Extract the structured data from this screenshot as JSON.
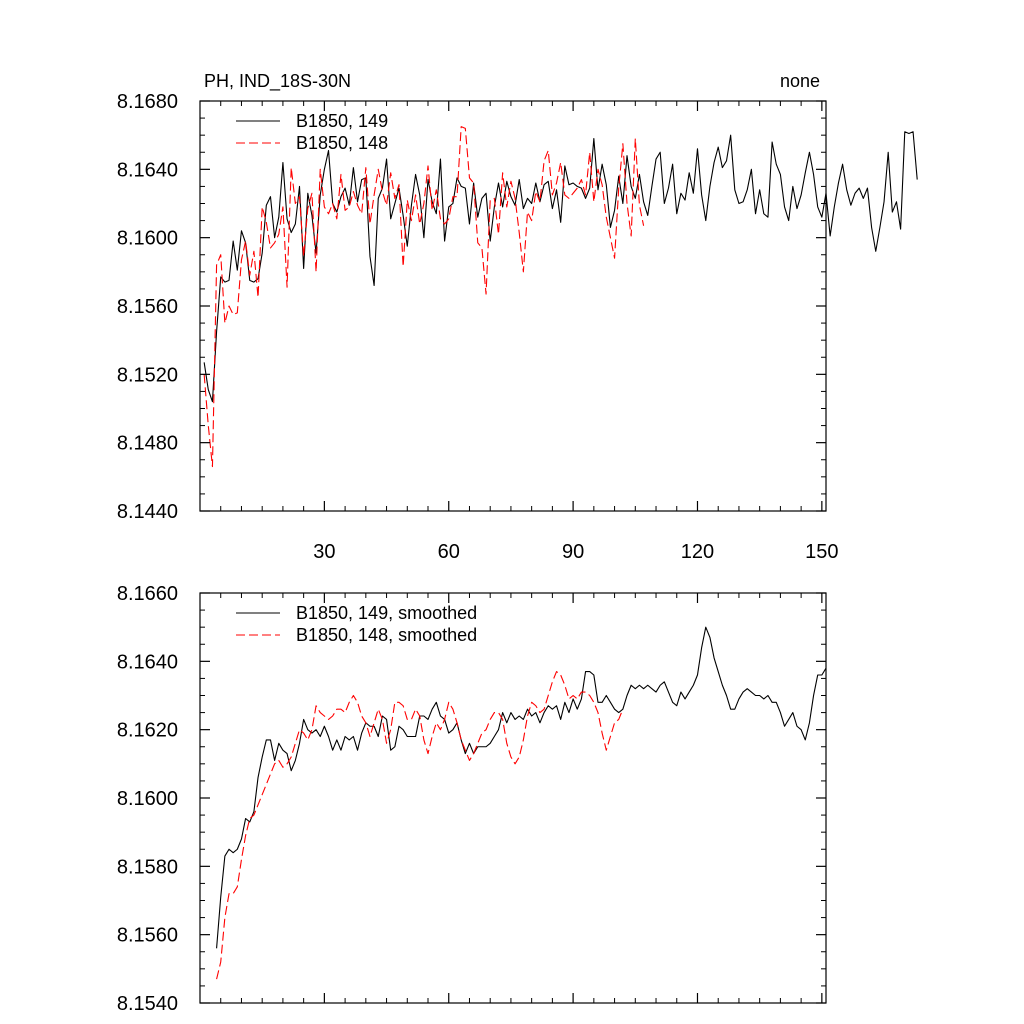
{
  "chart_data": [
    {
      "type": "line",
      "title": "PH, IND_18S-30N",
      "subtitle_right": "none",
      "xlabel": "",
      "ylabel": "",
      "xlim": [
        0,
        151
      ],
      "ylim": [
        8.144,
        8.168
      ],
      "x_ticks": [
        30,
        60,
        90,
        120,
        150
      ],
      "y_ticks": [
        "8.1440",
        "8.1480",
        "8.1520",
        "8.1560",
        "8.1600",
        "8.1640",
        "8.1680"
      ],
      "legend_position": "top-left",
      "series": [
        {
          "name": "B1850, 149",
          "color": "#000000",
          "dash": "solid",
          "x_start": 1,
          "values": [
            8.1527,
            8.1511,
            8.1504,
            8.1545,
            8.1577,
            8.1574,
            8.1575,
            8.1598,
            8.1581,
            8.1604,
            8.1597,
            8.1575,
            8.1574,
            8.1576,
            8.1591,
            8.1619,
            8.1624,
            8.16,
            8.1612,
            8.1644,
            8.1611,
            8.1603,
            8.1608,
            8.163,
            8.1582,
            8.1626,
            8.1613,
            8.1591,
            8.1625,
            8.164,
            8.1651,
            8.162,
            8.1615,
            8.1624,
            8.1629,
            8.1619,
            8.1641,
            8.1621,
            8.1634,
            8.1635,
            8.1589,
            8.1572,
            8.1623,
            8.1629,
            8.1646,
            8.1611,
            8.162,
            8.1629,
            8.1613,
            8.1595,
            8.1619,
            8.1637,
            8.1625,
            8.16,
            8.1634,
            8.1621,
            8.1614,
            8.1646,
            8.1598,
            8.1618,
            8.162,
            8.1635,
            8.163,
            8.1629,
            8.1608,
            8.1632,
            8.1612,
            8.1623,
            8.1626,
            8.1598,
            8.1618,
            8.1632,
            8.1618,
            8.1633,
            8.1624,
            8.1619,
            8.1634,
            8.1617,
            8.1623,
            8.162,
            8.1632,
            8.1621,
            8.1631,
            8.1633,
            8.1617,
            8.1628,
            8.1609,
            8.1642,
            8.1631,
            8.1632,
            8.163,
            8.1629,
            8.1623,
            8.1629,
            8.1658,
            8.1628,
            8.1643,
            8.1631,
            8.1606,
            8.1616,
            8.1636,
            8.162,
            8.1648,
            8.163,
            8.1623,
            8.1637,
            8.1621,
            8.1613,
            8.163,
            8.1646,
            8.165,
            8.162,
            8.1629,
            8.1643,
            8.1614,
            8.1626,
            8.1622,
            8.1638,
            8.1626,
            8.1652,
            8.1625,
            8.161,
            8.163,
            8.1644,
            8.1653,
            8.1641,
            8.1645,
            8.166,
            8.1628,
            8.162,
            8.1621,
            8.1628,
            8.164,
            8.1614,
            8.1628,
            8.1614,
            8.1612,
            8.1656,
            8.1643,
            8.1637,
            8.1618,
            8.161,
            8.163,
            8.1617,
            8.1625,
            8.1638,
            8.165,
            8.1637,
            8.1618,
            8.1612,
            8.1626,
            8.1601,
            8.1618,
            8.1632,
            8.1643,
            8.1628,
            8.1619,
            8.1626,
            8.1629,
            8.1623,
            8.1629,
            8.1606,
            8.1592,
            8.1606,
            8.1621,
            8.165,
            8.1615,
            8.1621,
            8.1605,
            8.1662,
            8.1661,
            8.1662,
            8.1634
          ]
        },
        {
          "name": "B1850, 148",
          "color": "#ff0000",
          "dash": "dashed",
          "x_start": 1,
          "values": [
            8.152,
            8.149,
            8.1466,
            8.1584,
            8.159,
            8.155,
            8.156,
            8.1555,
            8.1556,
            8.1587,
            8.1598,
            8.1578,
            8.1592,
            8.1565,
            8.1618,
            8.1609,
            8.1594,
            8.1597,
            8.1602,
            8.1618,
            8.1571,
            8.1641,
            8.162,
            8.1624,
            8.1589,
            8.1617,
            8.1626,
            8.158,
            8.164,
            8.1618,
            8.1614,
            8.162,
            8.1611,
            8.1637,
            8.1616,
            8.1618,
            8.1627,
            8.1619,
            8.1614,
            8.1641,
            8.1608,
            8.1625,
            8.164,
            8.1627,
            8.1619,
            8.1638,
            8.1623,
            8.1631,
            8.1583,
            8.1622,
            8.161,
            8.1625,
            8.1608,
            8.162,
            8.1642,
            8.1616,
            8.1628,
            8.1611,
            8.1608,
            8.1611,
            8.1624,
            8.1624,
            8.1665,
            8.1664,
            8.1635,
            8.1632,
            8.1597,
            8.1594,
            8.1567,
            8.1622,
            8.1623,
            8.1602,
            8.1638,
            8.1618,
            8.1633,
            8.1623,
            8.1603,
            8.158,
            8.1615,
            8.161,
            8.1627,
            8.1621,
            8.1645,
            8.1651,
            8.1625,
            8.1632,
            8.1644,
            8.1625,
            8.1623,
            8.1626,
            8.1629,
            8.1634,
            8.1625,
            8.165,
            8.1621,
            8.164,
            8.1631,
            8.1612,
            8.16,
            8.1588,
            8.1629,
            8.1655,
            8.162,
            8.1601,
            8.1658,
            8.1619,
            8.1607
          ]
        }
      ]
    },
    {
      "type": "line",
      "title": "",
      "xlabel": "",
      "ylabel": "",
      "xlim": [
        0,
        151
      ],
      "ylim": [
        8.154,
        8.166
      ],
      "x_ticks": [
        30,
        60,
        90,
        120,
        150
      ],
      "y_ticks": [
        "8.1540",
        "8.1560",
        "8.1580",
        "8.1600",
        "8.1620",
        "8.1640",
        "8.1660"
      ],
      "legend_position": "top-left",
      "series": [
        {
          "name": "B1850, 149, smoothed",
          "color": "#000000",
          "dash": "solid",
          "x_start": 4,
          "values": [
            8.1556,
            8.1571,
            8.1583,
            8.1585,
            8.1584,
            8.1585,
            8.1588,
            8.1594,
            8.1593,
            8.1596,
            8.1606,
            8.1612,
            8.1617,
            8.1617,
            8.1611,
            8.1616,
            8.1614,
            8.1613,
            8.1608,
            8.1611,
            8.1616,
            8.1623,
            8.162,
            8.1619,
            8.162,
            8.1618,
            8.1621,
            8.1618,
            8.1614,
            8.1617,
            8.1614,
            8.1618,
            8.1617,
            8.1618,
            8.1614,
            8.1619,
            8.1622,
            8.1621,
            8.1621,
            8.1618,
            8.1624,
            8.1623,
            8.1614,
            8.1615,
            8.1621,
            8.162,
            8.1618,
            8.1618,
            8.1618,
            8.1624,
            8.1624,
            8.1623,
            8.1626,
            8.1628,
            8.1624,
            8.1623,
            8.1619,
            8.162,
            8.1622,
            8.1617,
            8.1613,
            8.1616,
            8.1613,
            8.1615,
            8.1615,
            8.1615,
            8.1616,
            8.1618,
            8.162,
            8.1625,
            8.1622,
            8.1625,
            8.1623,
            8.1624,
            8.1623,
            8.1626,
            8.1624,
            8.1625,
            8.1622,
            8.1625,
            8.1627,
            8.1626,
            8.1627,
            8.1623,
            8.1628,
            8.1625,
            8.1629,
            8.1626,
            8.1629,
            8.1637,
            8.1637,
            8.1636,
            8.1628,
            8.1628,
            8.163,
            8.1628,
            8.1626,
            8.1625,
            8.1626,
            8.163,
            8.1633,
            8.1632,
            8.1633,
            8.1632,
            8.1633,
            8.1632,
            8.1631,
            8.1633,
            8.1634,
            8.1631,
            8.1628,
            8.1627,
            8.1631,
            8.1629,
            8.1631,
            8.1633,
            8.1636,
            8.1644,
            8.165,
            8.1647,
            8.1641,
            8.1637,
            8.1633,
            8.163,
            8.1626,
            8.1626,
            8.1629,
            8.1631,
            8.1632,
            8.1631,
            8.163,
            8.163,
            8.1629,
            8.163,
            8.1628,
            8.1628,
            8.1625,
            8.1621,
            8.1623,
            8.1625,
            8.1621,
            8.162,
            8.1617,
            8.1622,
            8.163,
            8.1636,
            8.1636,
            8.1638
          ]
        },
        {
          "name": "B1850, 148, smoothed",
          "color": "#ff0000",
          "dash": "dashed",
          "x_start": 4,
          "values": [
            8.1547,
            8.1552,
            8.1565,
            8.1572,
            8.1572,
            8.1574,
            8.1582,
            8.1589,
            8.1594,
            8.1595,
            8.1598,
            8.1601,
            8.1604,
            8.1607,
            8.161,
            8.1611,
            8.1609,
            8.161,
            8.1612,
            8.1616,
            8.162,
            8.1619,
            8.1617,
            8.162,
            8.1627,
            8.1625,
            8.1624,
            8.1623,
            8.1624,
            8.1626,
            8.1626,
            8.1625,
            8.1628,
            8.163,
            8.1628,
            8.1624,
            8.1622,
            8.1618,
            8.1622,
            8.1626,
            8.1623,
            8.1616,
            8.162,
            8.1628,
            8.1628,
            8.1627,
            8.1623,
            8.1623,
            8.1626,
            8.1624,
            8.1617,
            8.1613,
            8.1618,
            8.1622,
            8.162,
            8.1623,
            8.1628,
            8.1626,
            8.1622,
            8.1617,
            8.1614,
            8.1611,
            8.1613,
            8.1616,
            8.1619,
            8.162,
            8.1623,
            8.1625,
            8.1625,
            8.1623,
            8.1616,
            8.1612,
            8.161,
            8.1612,
            8.1617,
            8.1624,
            8.1628,
            8.1627,
            8.1625,
            8.1626,
            8.163,
            8.1634,
            8.1637,
            8.1636,
            8.1633,
            8.1629,
            8.163,
            8.1629,
            8.1631,
            8.1631,
            8.163,
            8.1628,
            8.1625,
            8.1619,
            8.1614,
            8.1618,
            8.1622,
            8.1623,
            8.1626
          ]
        }
      ]
    }
  ]
}
